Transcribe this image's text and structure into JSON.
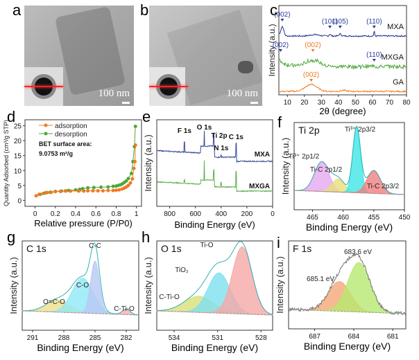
{
  "panels": {
    "a": {
      "label": "a",
      "scale": "100 nm"
    },
    "b": {
      "label": "b",
      "scale": "100 nm"
    },
    "c": {
      "label": "c"
    },
    "d": {
      "label": "d"
    },
    "e": {
      "label": "e"
    },
    "f": {
      "label": "f"
    },
    "g": {
      "label": "g"
    },
    "h": {
      "label": "h"
    },
    "i": {
      "label": "i"
    }
  },
  "chart_data": [
    {
      "id": "c",
      "type": "line",
      "title": "",
      "xlabel": "2θ (degree)",
      "ylabel": "Intensity (a.u.)",
      "xlim": [
        5,
        80
      ],
      "xticks": [
        10,
        20,
        30,
        40,
        50,
        60,
        70,
        80
      ],
      "series": [
        {
          "name": "MXA",
          "color": "#1f2f8f",
          "peaks": [
            {
              "x": 7,
              "label": "(002)"
            },
            {
              "x": 35,
              "label": "(101)"
            },
            {
              "x": 41,
              "label": "(105)"
            },
            {
              "x": 61,
              "label": "(110)"
            }
          ]
        },
        {
          "name": "MXGA",
          "color": "#4fa83a",
          "peaks": [
            {
              "x": 6,
              "label": "(002)"
            },
            {
              "x": 25,
              "label": "(002)"
            },
            {
              "x": 61,
              "label": "(110)"
            }
          ]
        },
        {
          "name": "GA",
          "color": "#f07a20",
          "peaks": [
            {
              "x": 24,
              "label": "(002)"
            }
          ]
        }
      ]
    },
    {
      "id": "d",
      "type": "line",
      "xlabel": "Relative pressure (P/P0)",
      "ylabel": "Quantity Adsorbed (cm³/g STP)",
      "xlim": [
        -0.1,
        1.05
      ],
      "ylim": [
        -2,
        27
      ],
      "xticks": [
        0.0,
        0.2,
        0.4,
        0.6,
        0.8,
        1.0
      ],
      "yticks": [
        0,
        5,
        10,
        15,
        20,
        25
      ],
      "annotation": [
        "BET surface area:",
        "9.0753 m²/g"
      ],
      "legend": "top-left",
      "series": [
        {
          "name": "adsorption",
          "color": "#f07a20",
          "x": [
            0.01,
            0.04,
            0.08,
            0.12,
            0.16,
            0.2,
            0.25,
            0.3,
            0.35,
            0.43,
            0.48,
            0.52,
            0.57,
            0.62,
            0.67,
            0.72,
            0.77,
            0.8,
            0.83,
            0.86,
            0.88,
            0.9,
            0.92,
            0.94,
            0.96,
            0.975,
            0.985,
            0.99
          ],
          "y": [
            1.5,
            2.0,
            2.3,
            2.6,
            2.7,
            2.9,
            3.0,
            3.1,
            3.1,
            3.1,
            3.1,
            3.2,
            3.2,
            3.2,
            3.2,
            3.3,
            3.3,
            3.4,
            3.5,
            3.8,
            4.1,
            4.5,
            5.0,
            5.8,
            7.2,
            10.7,
            13.0,
            18.5
          ]
        },
        {
          "name": "desorption",
          "color": "#4fa83a",
          "x": [
            0.99,
            0.98,
            0.965,
            0.95,
            0.92,
            0.9,
            0.88,
            0.86,
            0.84,
            0.82,
            0.8,
            0.77,
            0.72,
            0.65,
            0.58,
            0.52,
            0.47,
            0.44,
            0.4,
            0.33,
            0.3,
            0.26,
            0.2,
            0.15,
            0.1,
            0.05
          ],
          "y": [
            24.8,
            18.0,
            13.0,
            9.0,
            7.3,
            6.5,
            6.0,
            5.5,
            5.2,
            5.0,
            4.8,
            4.7,
            4.5,
            4.4,
            4.3,
            4.2,
            3.9,
            3.7,
            3.5,
            3.3,
            3.2,
            3.1,
            3.0,
            2.7,
            2.5,
            2.0
          ]
        }
      ]
    },
    {
      "id": "e",
      "type": "line",
      "xlabel": "Binding Energy (eV)",
      "ylabel": "Intensity (a.u.)",
      "xlim": [
        900,
        0
      ],
      "xticks": [
        800,
        600,
        400,
        200,
        0
      ],
      "peak_labels": [
        {
          "x": 685,
          "label": "F 1s"
        },
        {
          "x": 531,
          "label": "O 1s"
        },
        {
          "x": 458,
          "label": "Ti 2p"
        },
        {
          "x": 400,
          "label": "N 1s"
        },
        {
          "x": 284,
          "label": "C 1s"
        }
      ],
      "series": [
        {
          "name": "MXA",
          "color": "#3a4a9a"
        },
        {
          "name": "MXGA",
          "color": "#5cae4a"
        }
      ]
    },
    {
      "id": "f",
      "type": "area",
      "title": "Ti 2p",
      "xlabel": "Binding Energy (eV)",
      "ylabel": "Intensity (a.u.)",
      "xlim": [
        468,
        450
      ],
      "xticks": [
        465,
        460,
        455,
        450
      ],
      "components": [
        {
          "name": "Ti³⁺ 2p1/2",
          "center": 463.5,
          "height": 0.45,
          "fwhm": 2.8,
          "color": "#e6a7f0"
        },
        {
          "name": "Ti-C 2p1/2",
          "center": 460.8,
          "height": 0.2,
          "fwhm": 2.4,
          "color": "#e8e07a"
        },
        {
          "name": "Ti³⁺ 2p3/2",
          "center": 457.8,
          "height": 1.0,
          "fwhm": 1.5,
          "color": "#3fe6e6"
        },
        {
          "name": "Ti-C 2p3/2",
          "center": 455.0,
          "height": 0.35,
          "fwhm": 2.6,
          "color": "#f08080"
        }
      ]
    },
    {
      "id": "g",
      "type": "area",
      "title": "C 1s",
      "xlabel": "Binding Energy (eV)",
      "ylabel": "Intensity (a.u.)",
      "xlim": [
        292,
        280.8
      ],
      "xticks": [
        291,
        288,
        285,
        282
      ],
      "components": [
        {
          "name": "O=C-O",
          "center": 288.6,
          "height": 0.18,
          "fwhm": 2.6,
          "color": "#eee08a"
        },
        {
          "name": "C-O",
          "center": 286.2,
          "height": 0.52,
          "fwhm": 2.4,
          "color": "#8fe8f5"
        },
        {
          "name": "C-C",
          "center": 285.0,
          "height": 0.78,
          "fwhm": 1.0,
          "color": "#b8c8f5"
        },
        {
          "name": "C-Ti-O",
          "center": 282.0,
          "height": 0.08,
          "fwhm": 0.9,
          "color": "#f5b0b8"
        }
      ]
    },
    {
      "id": "h",
      "type": "area",
      "title": "O 1s",
      "xlabel": "Binding Energy (eV)",
      "ylabel": "Intensity (a.u.)",
      "xlim": [
        535.2,
        527.2
      ],
      "xticks": [
        534,
        531,
        528
      ],
      "components": [
        {
          "name": "C-Ti-O",
          "center": 532.3,
          "height": 0.24,
          "fwhm": 2.4,
          "color": "#d8e07a"
        },
        {
          "name": "TiO₂",
          "center": 530.9,
          "height": 0.6,
          "fwhm": 1.8,
          "color": "#7fe0f0"
        },
        {
          "name": "Ti-O",
          "center": 529.3,
          "height": 1.0,
          "fwhm": 1.6,
          "color": "#f6a8a8"
        }
      ]
    },
    {
      "id": "i",
      "type": "area",
      "title": "F 1s",
      "xlabel": "Binding Energy (eV)",
      "ylabel": "Intensity (a.u.)",
      "xlim": [
        689,
        680
      ],
      "xticks": [
        687,
        684,
        681
      ],
      "components": [
        {
          "name": "685.1 eV",
          "center": 685.1,
          "height": 0.45,
          "fwhm": 2.0,
          "color": "#f5a878"
        },
        {
          "name": "683.6 eV",
          "center": 683.6,
          "height": 0.75,
          "fwhm": 2.0,
          "color": "#b8e870"
        }
      ]
    }
  ]
}
